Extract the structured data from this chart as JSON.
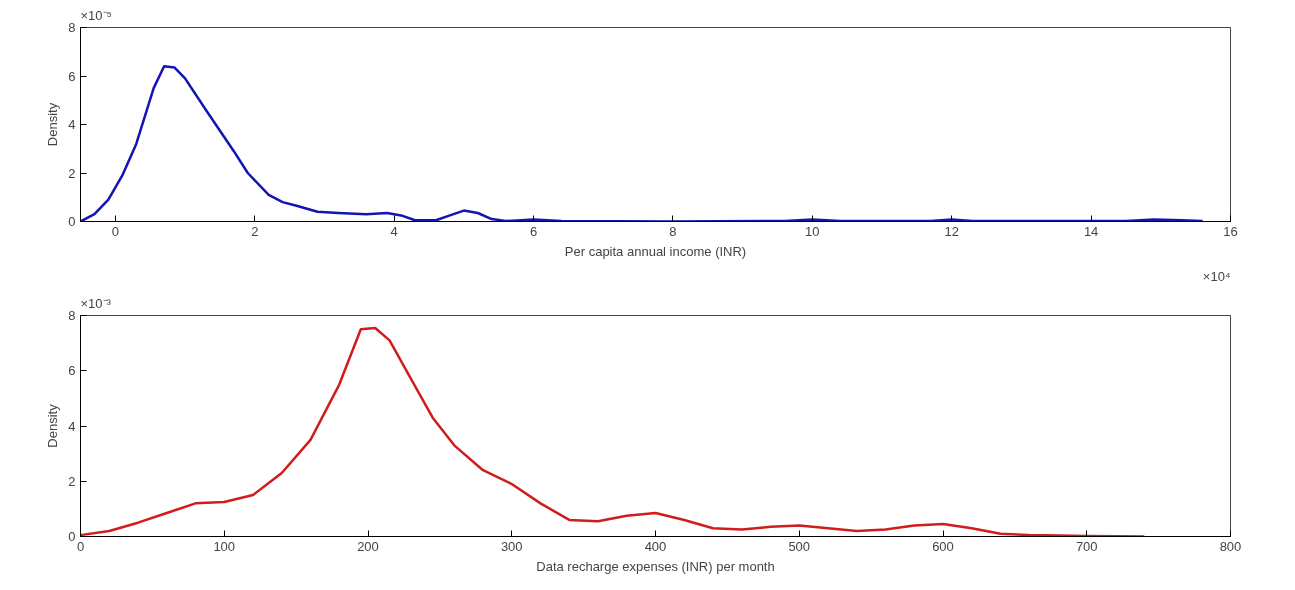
{
  "chart_data": [
    {
      "type": "line",
      "xlabel": "Per capita annual income (INR)",
      "ylabel": "Density",
      "annotations": [
        "×10⁻⁵",
        "×10⁴"
      ],
      "xlim": [
        -0.5,
        16
      ],
      "xticks": [
        0,
        2,
        4,
        6,
        8,
        10,
        12,
        14,
        16
      ],
      "ylim": [
        0,
        8
      ],
      "yticks": [
        0,
        2,
        4,
        6,
        8
      ],
      "series": [
        {
          "color": "#1414b4",
          "x": [
            -0.5,
            -0.3,
            -0.1,
            0.1,
            0.3,
            0.55,
            0.7,
            0.85,
            1.0,
            1.3,
            1.7,
            1.9,
            2.2,
            2.4,
            2.6,
            2.9,
            3.2,
            3.6,
            3.9,
            4.1,
            4.3,
            4.6,
            4.8,
            5.0,
            5.2,
            5.4,
            5.6,
            6.0,
            6.4,
            8.0,
            9.6,
            10.0,
            10.4,
            11.7,
            12.0,
            12.3,
            14.5,
            14.9,
            15.3,
            15.6
          ],
          "values": [
            0,
            0.3,
            0.9,
            1.9,
            3.2,
            5.5,
            6.4,
            6.35,
            5.9,
            4.6,
            2.9,
            2.0,
            1.1,
            0.8,
            0.65,
            0.4,
            0.35,
            0.3,
            0.35,
            0.25,
            0.05,
            0.05,
            0.25,
            0.45,
            0.35,
            0.1,
            0.02,
            0.08,
            0.02,
            0.0,
            0.02,
            0.08,
            0.02,
            0.02,
            0.08,
            0.02,
            0.02,
            0.08,
            0.05,
            0.02
          ]
        }
      ]
    },
    {
      "type": "line",
      "xlabel": "Data recharge expenses (INR) per month",
      "ylabel": "Density",
      "annotations": [
        "×10⁻³"
      ],
      "xlim": [
        0,
        800
      ],
      "xticks": [
        0,
        100,
        200,
        300,
        400,
        500,
        600,
        700,
        800
      ],
      "ylim": [
        0,
        8
      ],
      "yticks": [
        0,
        2,
        4,
        6,
        8
      ],
      "series": [
        {
          "color": "#d01c1c",
          "x": [
            0,
            20,
            40,
            60,
            80,
            100,
            120,
            140,
            160,
            180,
            195,
            205,
            215,
            230,
            245,
            260,
            280,
            300,
            320,
            340,
            360,
            380,
            400,
            420,
            440,
            460,
            480,
            500,
            520,
            540,
            560,
            580,
            600,
            620,
            640,
            660,
            700,
            740
          ],
          "values": [
            0.05,
            0.2,
            0.5,
            0.85,
            1.2,
            1.25,
            1.5,
            2.3,
            3.5,
            5.5,
            7.5,
            7.55,
            7.1,
            5.7,
            4.3,
            3.3,
            2.4,
            1.9,
            1.2,
            0.6,
            0.55,
            0.75,
            0.85,
            0.6,
            0.3,
            0.25,
            0.35,
            0.4,
            0.3,
            0.2,
            0.25,
            0.4,
            0.45,
            0.3,
            0.1,
            0.05,
            0.02,
            0.0
          ]
        }
      ]
    }
  ]
}
